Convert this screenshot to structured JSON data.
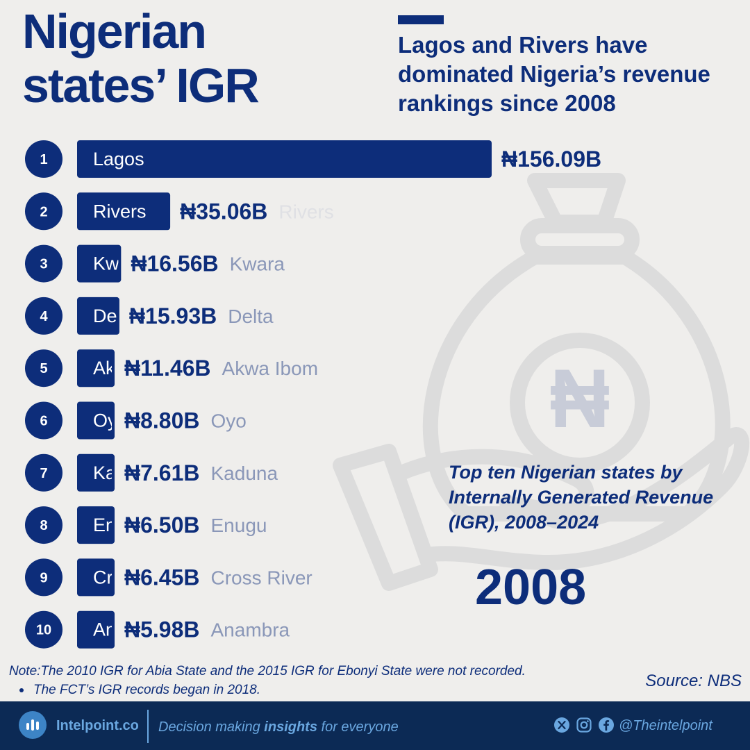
{
  "header": {
    "title": "Nigerian\nstates’ IGR",
    "subtitle": "Lagos and Rivers have dominated Nigeria’s revenue rankings since 2008"
  },
  "caption": "Top ten Nigerian states by Internally Generated Revenue (IGR), 2008–2024",
  "year": "2008",
  "notes": {
    "note": "Note:The 2010 IGR for Abia State and the 2015 IGR for Ebonyi State were not recorded.",
    "bullet": "The FCT’s IGR records began in 2018."
  },
  "source": "Source: NBS",
  "footer": {
    "brand": "Intelpoint.co",
    "tagline_pre": "Decision making ",
    "tagline_bold": "insights",
    "tagline_post": " for everyone",
    "handle": "@Theintelpoint",
    "icons": [
      "x-icon",
      "instagram-icon",
      "facebook-icon"
    ]
  },
  "colors": {
    "bar": "#0d2d7a",
    "rank_circle": "#0d2d7a",
    "state_label_faded": "#8a97b8",
    "background": "#efeeec",
    "footer_bg": "#0c2a55",
    "footer_text": "#6aa7e0"
  },
  "chart_data": {
    "type": "bar",
    "orientation": "horizontal",
    "unit_prefix": "₦",
    "unit_suffix": "B",
    "year": "2008",
    "categories": [
      "Lagos",
      "Rivers",
      "Kwara",
      "Delta",
      "Akwa Ibom",
      "Oyo",
      "Kaduna",
      "Enugu",
      "Cross River",
      "Anambra"
    ],
    "ranks": [
      1,
      2,
      3,
      4,
      5,
      6,
      7,
      8,
      9,
      10
    ],
    "values": [
      156.09,
      35.06,
      16.56,
      15.93,
      11.46,
      8.8,
      7.61,
      6.5,
      6.45,
      5.98
    ],
    "value_labels": [
      "₦156.09B",
      "₦35.06B",
      "₦16.56B",
      "₦15.93B",
      "₦11.46B",
      "₦8.80B",
      "₦7.61B",
      "₦6.50B",
      "₦6.45B",
      "₦5.98B"
    ],
    "xlim": [
      0,
      156.09
    ],
    "grid": false,
    "legend": "none"
  }
}
